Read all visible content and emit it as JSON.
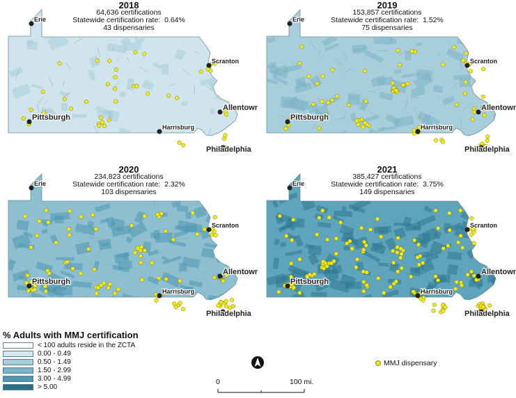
{
  "panels": [
    {
      "year": "2018",
      "certifications": "64,636 certifications",
      "rate_label": "Statewide certification rate:",
      "rate": "0.64%",
      "dispensaries": "43 dispensaries",
      "fill": "#cfe4ec",
      "dark_fill": "#a9cedb",
      "dots": 43
    },
    {
      "year": "2019",
      "certifications": "153,857 certifications",
      "rate_label": "Statewide certification rate:",
      "rate": "1.52%",
      "dispensaries": "75 dispensaries",
      "fill": "#a9cedb",
      "dark_fill": "#7bb2c6",
      "dots": 75
    },
    {
      "year": "2020",
      "certifications": "234,823 certifications",
      "rate_label": "Statewide certification rate:",
      "rate": "2.32%",
      "dispensaries": "103 dispensaries",
      "fill": "#8dbfd0",
      "dark_fill": "#4f98b0",
      "dots": 103
    },
    {
      "year": "2021",
      "certifications": "385,427 certifications",
      "rate_label": "Statewide certification rate:",
      "rate": "3.75%",
      "dispensaries": "149 dispensaries",
      "fill": "#5ea4ba",
      "dark_fill": "#2f7891",
      "dots": 149
    }
  ],
  "cities": {
    "erie": "Erie",
    "scranton": "Scranton",
    "allentown": "Allentown",
    "pittsburgh": "Pittsburgh",
    "harrisburg": "Harrisburg",
    "philadelphia": "Philadelphia"
  },
  "legend": {
    "title": "% Adults with MMJ certification",
    "items": [
      {
        "label": "< 100 adults reside in the ZCTA",
        "color": "#ffffff"
      },
      {
        "label": "0.00 - 0.49",
        "color": "#d5e8ef"
      },
      {
        "label": "0.50 - 1.49",
        "color": "#a9cedb"
      },
      {
        "label": "1.50 - 2.99",
        "color": "#7bb2c6"
      },
      {
        "label": "3.00 - 4.99",
        "color": "#4f98b0"
      },
      {
        "label": "> 5.00",
        "color": "#2b6f86"
      }
    ]
  },
  "scale": {
    "start": "0",
    "end": "100 mi."
  },
  "dispensary_legend": "MMJ dispensary",
  "north_icon": "north-arrow-icon"
}
